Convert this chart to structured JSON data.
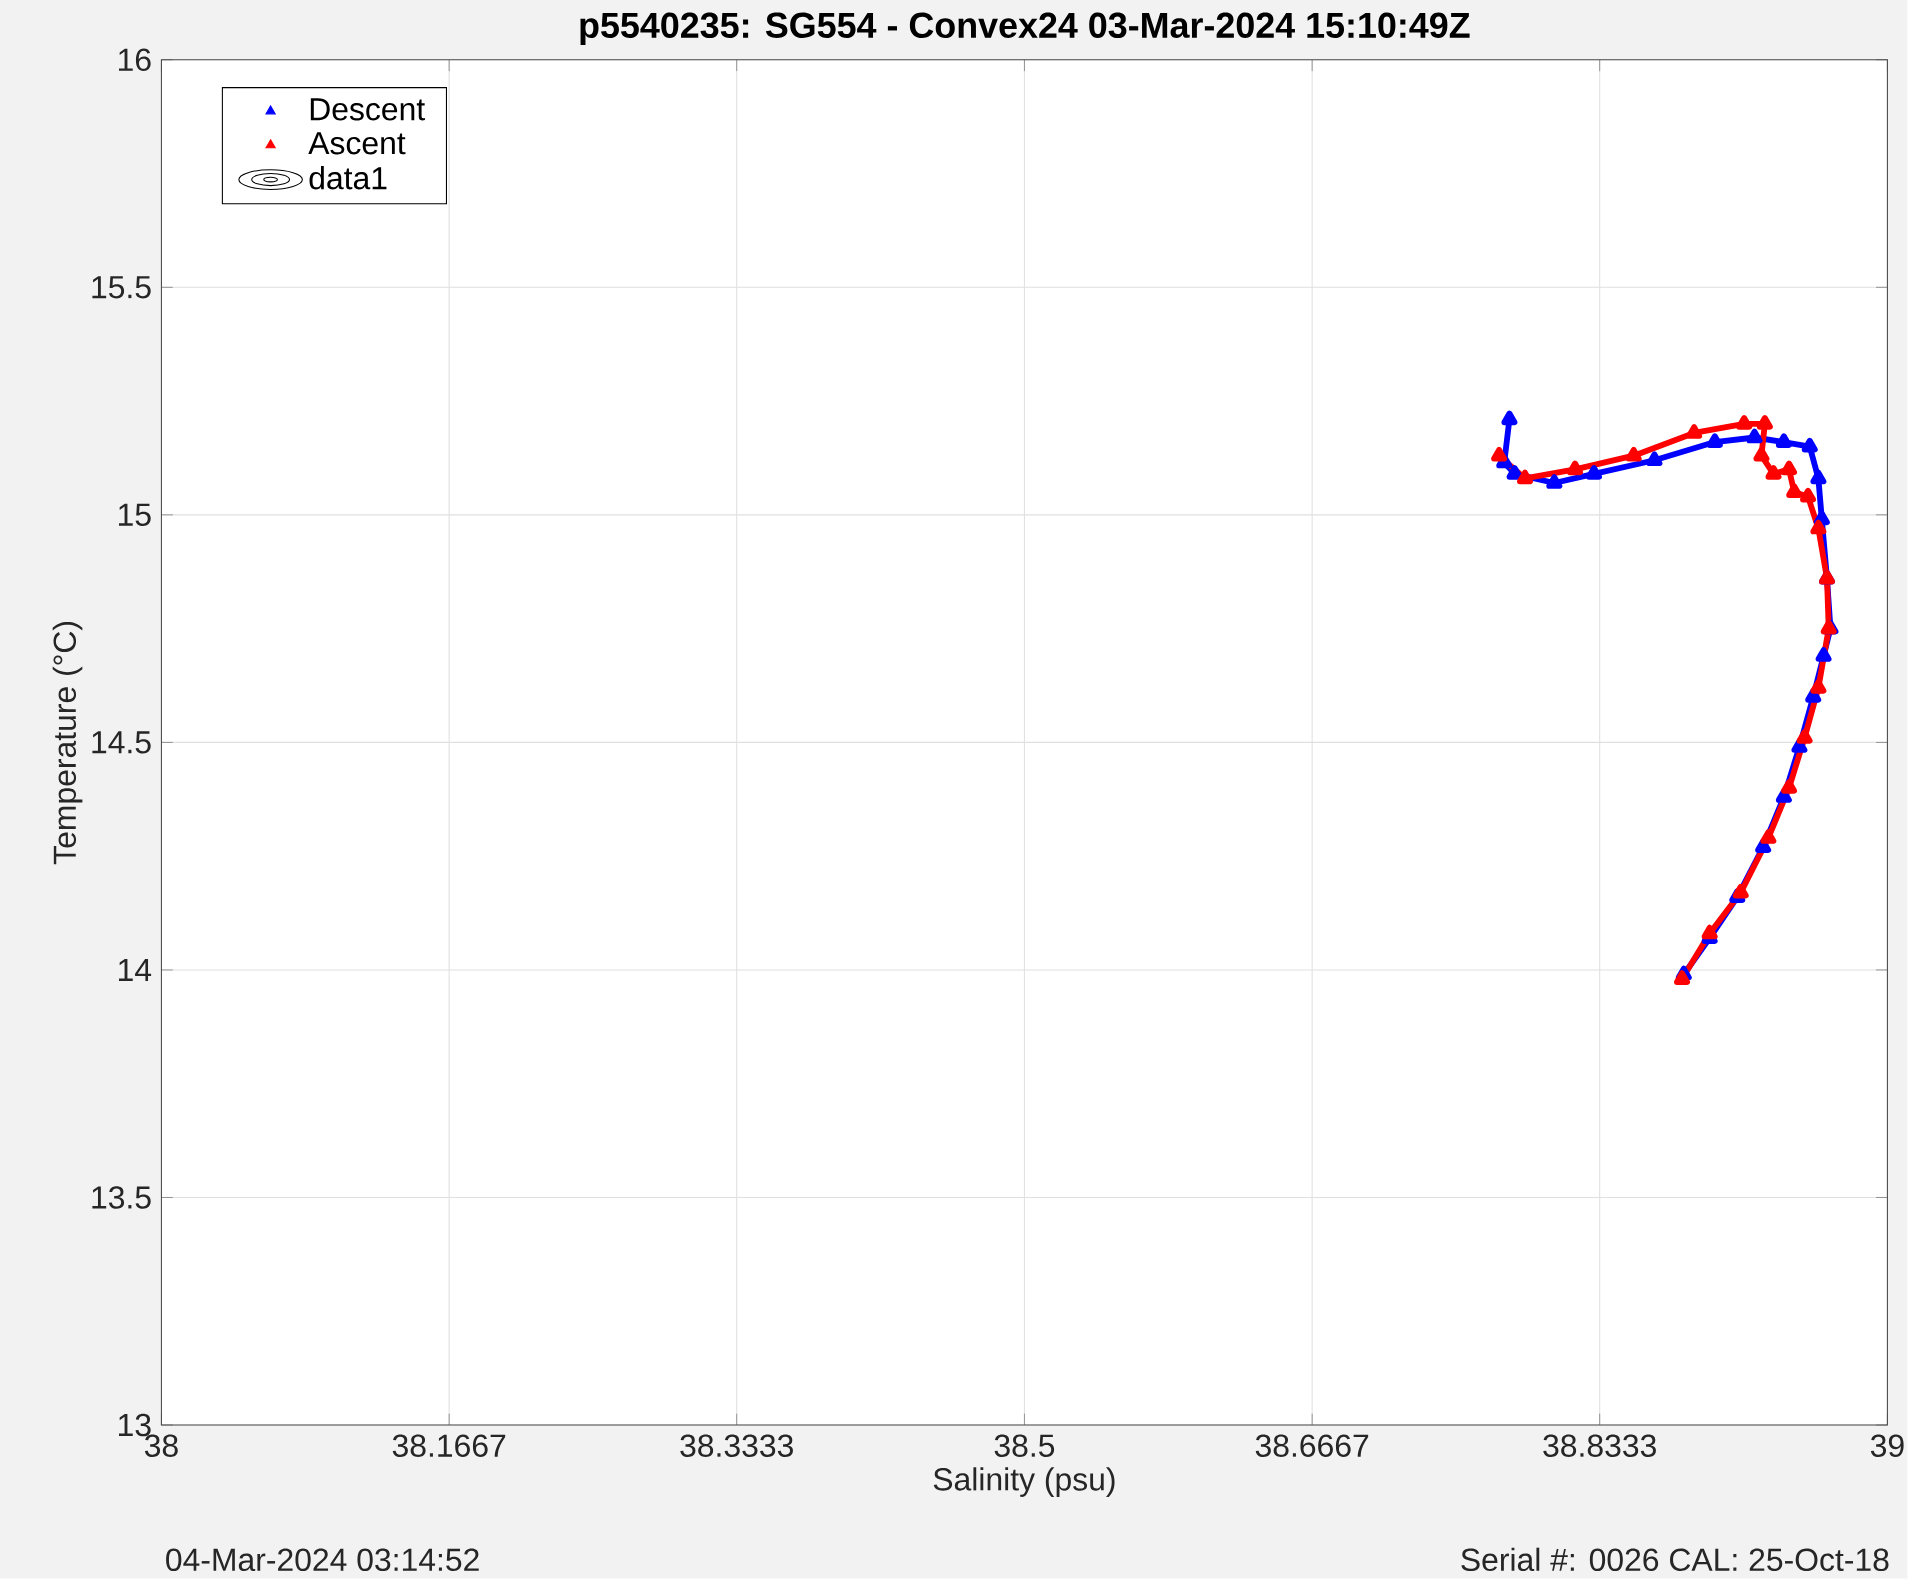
{
  "chart_data": {
    "type": "line",
    "title": "p5540235: SG554 - Convex24 03-Mar-2024 15:10:49Z",
    "xlabel": "Salinity (psu)",
    "ylabel": "Temperature (°C)",
    "annotations": [
      "04-Mar-2024 03:14:52",
      "Serial #: 0026 CAL: 25-Oct-18"
    ],
    "xlim": [
      38,
      39
    ],
    "ylim": [
      13,
      16
    ],
    "xticks": [
      38,
      38.1667,
      38.3333,
      38.5,
      38.6667,
      38.8333,
      39
    ],
    "yticks": [
      13,
      13.5,
      14,
      14.5,
      15,
      15.5,
      16
    ],
    "grid": true,
    "legend": "top left",
    "marker": "triangle",
    "series": [
      {
        "name": "Descent",
        "color": "#0000ff",
        "x": [
          38.781,
          38.778,
          38.784,
          38.807,
          38.83,
          38.865,
          38.9,
          38.923,
          38.94,
          38.955,
          38.96,
          38.962,
          38.965,
          38.967,
          38.963,
          38.957,
          38.949,
          38.94,
          38.928,
          38.913,
          38.897,
          38.882
        ],
        "values": [
          15.21,
          15.115,
          15.09,
          15.07,
          15.09,
          15.12,
          15.16,
          15.17,
          15.16,
          15.15,
          15.08,
          14.99,
          14.86,
          14.75,
          14.69,
          14.6,
          14.49,
          14.38,
          14.27,
          14.16,
          14.07,
          13.99
        ]
      },
      {
        "name": "Ascent",
        "color": "#ff0000",
        "x": [
          38.881,
          38.897,
          38.915,
          38.931,
          38.943,
          38.952,
          38.96,
          38.966,
          38.965,
          38.96,
          38.954,
          38.946,
          38.943,
          38.934,
          38.927,
          38.929,
          38.917,
          38.888,
          38.853,
          38.819,
          38.79,
          38.775
        ],
        "values": [
          13.98,
          14.08,
          14.17,
          14.29,
          14.4,
          14.51,
          14.62,
          14.75,
          14.86,
          14.97,
          15.04,
          15.05,
          15.1,
          15.09,
          15.13,
          15.2,
          15.2,
          15.18,
          15.13,
          15.1,
          15.08,
          15.13
        ]
      },
      {
        "name": "data1",
        "color": "#000000"
      }
    ]
  }
}
